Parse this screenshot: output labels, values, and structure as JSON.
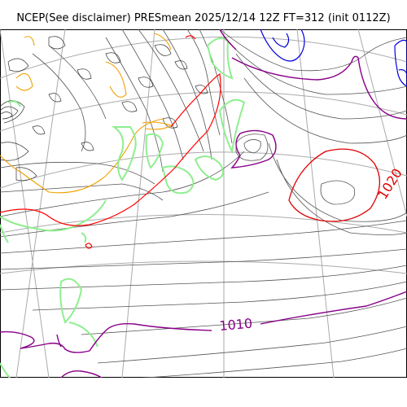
{
  "title": "NCEP(See disclaimer) PRESmean 2025/12/14 12Z FT=312 (init 0112Z)",
  "isobar_labels": {
    "label_1020": "1020",
    "label_1010": "1010"
  },
  "colors": {
    "isobar_thin": "#555555",
    "isobar_1020": "#e00000",
    "isobar_1010": "#880088",
    "isobar_1000": "#ff0000",
    "isobar_low": "#0000dd",
    "coastline": "#90ee90",
    "terrain_contour": "#f0a000",
    "graticule": "#aaaaaa"
  }
}
